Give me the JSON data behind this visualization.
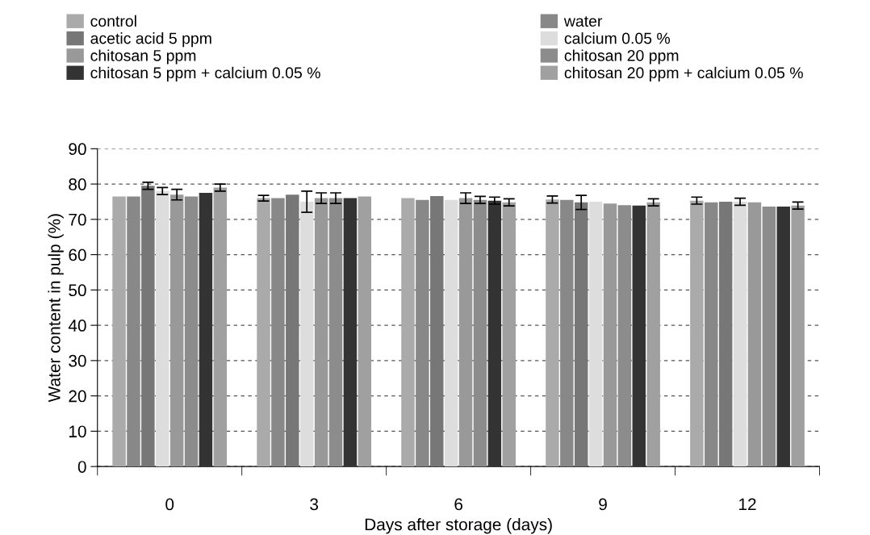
{
  "chart_data": {
    "type": "bar",
    "xlabel": "Days after storage (days)",
    "ylabel": "Water content in pulp (%)",
    "categories": [
      "0",
      "3",
      "6",
      "9",
      "12"
    ],
    "series": [
      {
        "name": "control",
        "color": "#aaaaaa",
        "values": [
          76.5,
          76.0,
          76.0,
          75.6,
          75.3
        ],
        "errors": [
          null,
          0.8,
          null,
          1,
          1
        ]
      },
      {
        "name": "water",
        "color": "#888888",
        "values": [
          76.5,
          76.0,
          75.5,
          75.5,
          74.8
        ],
        "errors": [
          null,
          null,
          null,
          null,
          null
        ]
      },
      {
        "name": "acetic acid 5 ppm",
        "color": "#777777",
        "values": [
          79.5,
          77.0,
          76.6,
          74.8,
          75.0
        ],
        "errors": [
          1,
          null,
          null,
          2,
          null
        ]
      },
      {
        "name": "calcium 0.05 %",
        "color": "#dddddd",
        "values": [
          78.0,
          75.0,
          75.5,
          75.0,
          75.0
        ],
        "errors": [
          1,
          3,
          null,
          null,
          1
        ]
      },
      {
        "name": "chitosan 5 ppm",
        "color": "#999999",
        "values": [
          77.0,
          76.0,
          76.0,
          74.5,
          74.8
        ],
        "errors": [
          1.5,
          1.5,
          1.5,
          null,
          null
        ]
      },
      {
        "name": "chitosan 20 ppm",
        "color": "#8c8c8c",
        "values": [
          76.5,
          76.0,
          75.5,
          74.0,
          73.6
        ],
        "errors": [
          null,
          1.5,
          1,
          null,
          null
        ]
      },
      {
        "name": "chitosan 5 ppm + calcium 0.05 %",
        "color": "#333333",
        "values": [
          77.5,
          76.0,
          75.3,
          73.9,
          73.6
        ],
        "errors": [
          null,
          null,
          1,
          null,
          null
        ]
      },
      {
        "name": "chitosan 20 ppm + calcium 0.05 %",
        "color": "#a0a0a0",
        "values": [
          79.0,
          76.5,
          74.8,
          74.8,
          73.9
        ],
        "errors": [
          1,
          null,
          1,
          1,
          1
        ]
      }
    ],
    "ylim": [
      0,
      90
    ],
    "yticks": [
      0,
      10,
      20,
      30,
      40,
      50,
      60,
      70,
      80,
      90
    ],
    "grid": "y",
    "legend": "top"
  }
}
